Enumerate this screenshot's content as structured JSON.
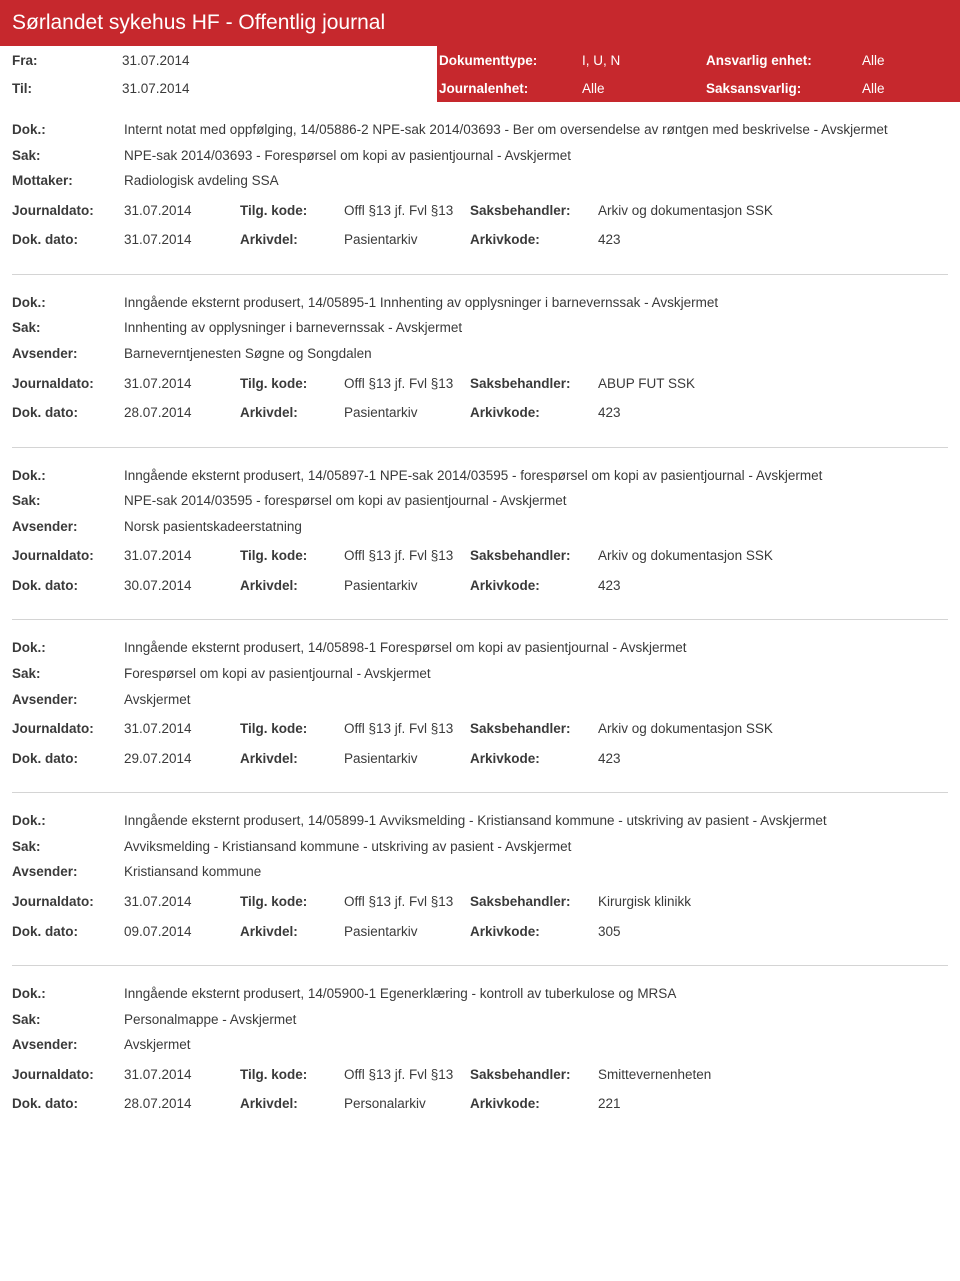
{
  "header": {
    "title": "Sørlandet sykehus HF - Offentlig journal"
  },
  "filters": {
    "fra_label": "Fra:",
    "fra_value": "31.07.2014",
    "til_label": "Til:",
    "til_value": "31.07.2014",
    "dokumenttype_label": "Dokumenttype:",
    "dokumenttype_value": "I, U, N",
    "journalenhet_label": "Journalenhet:",
    "journalenhet_value": "Alle",
    "ansvarlig_label": "Ansvarlig enhet:",
    "ansvarlig_value": "Alle",
    "saksansvarlig_label": "Saksansvarlig:",
    "saksansvarlig_value": "Alle"
  },
  "labels": {
    "dok": "Dok.:",
    "sak": "Sak:",
    "mottaker": "Mottaker:",
    "avsender": "Avsender:",
    "journaldato": "Journaldato:",
    "tilgkode": "Tilg. kode:",
    "saksbehandler": "Saksbehandler:",
    "dokdato": "Dok. dato:",
    "arkivdel": "Arkivdel:",
    "arkivkode": "Arkivkode:"
  },
  "entries": [
    {
      "dok": "Internt notat med oppfølging, 14/05886-2 NPE-sak 2014/03693 - Ber om oversendelse av røntgen med beskrivelse - Avskjermet",
      "sak": "NPE-sak 2014/03693 - Forespørsel om kopi av pasientjournal - Avskjermet",
      "party_label": "Mottaker:",
      "party_value": "Radiologisk avdeling SSA",
      "journaldato": "31.07.2014",
      "tilgkode": "Offl §13 jf. Fvl §13",
      "saksbehandler": "Arkiv og dokumentasjon SSK",
      "dokdato": "31.07.2014",
      "arkivdel": "Pasientarkiv",
      "arkivkode": "423"
    },
    {
      "dok": "Inngående eksternt produsert, 14/05895-1 Innhenting av opplysninger i barnevernssak - Avskjermet",
      "sak": "Innhenting av opplysninger i barnevernssak - Avskjermet",
      "party_label": "Avsender:",
      "party_value": "Barneverntjenesten Søgne og Songdalen",
      "journaldato": "31.07.2014",
      "tilgkode": "Offl §13 jf. Fvl §13",
      "saksbehandler": "ABUP FUT SSK",
      "dokdato": "28.07.2014",
      "arkivdel": "Pasientarkiv",
      "arkivkode": "423"
    },
    {
      "dok": "Inngående eksternt produsert, 14/05897-1 NPE-sak 2014/03595 - forespørsel om kopi av pasientjournal - Avskjermet",
      "sak": "NPE-sak 2014/03595 - forespørsel om kopi av pasientjournal - Avskjermet",
      "party_label": "Avsender:",
      "party_value": "Norsk pasientskadeerstatning",
      "journaldato": "31.07.2014",
      "tilgkode": "Offl §13 jf. Fvl §13",
      "saksbehandler": "Arkiv og dokumentasjon SSK",
      "dokdato": "30.07.2014",
      "arkivdel": "Pasientarkiv",
      "arkivkode": "423"
    },
    {
      "dok": "Inngående eksternt produsert, 14/05898-1 Forespørsel om kopi av pasientjournal - Avskjermet",
      "sak": "Forespørsel om kopi av pasientjournal - Avskjermet",
      "party_label": "Avsender:",
      "party_value": "Avskjermet",
      "journaldato": "31.07.2014",
      "tilgkode": "Offl §13 jf. Fvl §13",
      "saksbehandler": "Arkiv og dokumentasjon SSK",
      "dokdato": "29.07.2014",
      "arkivdel": "Pasientarkiv",
      "arkivkode": "423"
    },
    {
      "dok": "Inngående eksternt produsert, 14/05899-1 Avviksmelding - Kristiansand kommune - utskriving av pasient - Avskjermet",
      "sak": "Avviksmelding - Kristiansand kommune - utskriving av pasient - Avskjermet",
      "party_label": "Avsender:",
      "party_value": "Kristiansand kommune",
      "journaldato": "31.07.2014",
      "tilgkode": "Offl §13 jf. Fvl §13",
      "saksbehandler": "Kirurgisk klinikk",
      "dokdato": "09.07.2014",
      "arkivdel": "Pasientarkiv",
      "arkivkode": "305"
    },
    {
      "dok": "Inngående eksternt produsert, 14/05900-1 Egenerklæring - kontroll av tuberkulose og MRSA",
      "sak": "Personalmappe - Avskjermet",
      "party_label": "Avsender:",
      "party_value": "Avskjermet",
      "journaldato": "31.07.2014",
      "tilgkode": "Offl §13 jf. Fvl §13",
      "saksbehandler": "Smittevernenheten",
      "dokdato": "28.07.2014",
      "arkivdel": "Personalarkiv",
      "arkivkode": "221"
    }
  ]
}
